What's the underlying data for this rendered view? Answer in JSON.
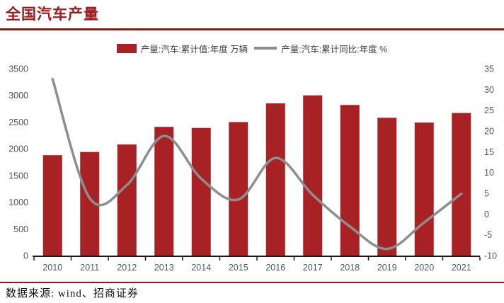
{
  "header": {
    "title": "全国汽车产量"
  },
  "legend": {
    "items": [
      {
        "kind": "bar",
        "label": "产量:汽车:累计值:年度  万辆"
      },
      {
        "kind": "line",
        "label": "产量:汽车:累计同比:年度  %"
      }
    ]
  },
  "footer": {
    "source": "数据来源: wind、招商证券"
  },
  "colors": {
    "bar_red": "#a72125",
    "title_red": "#9a1a1e",
    "rule_red": "#8a1719",
    "line_gray": "#8e8e8e",
    "axis_text": "#4d5866",
    "legend_text": "#404040",
    "axis_line": "#1a1a1a"
  },
  "chart_data": {
    "type": "bar",
    "subtype": "bar+line combo, dual axis",
    "title": "全国汽车产量",
    "categories": [
      "2010",
      "2011",
      "2012",
      "2013",
      "2014",
      "2015",
      "2016",
      "2017",
      "2018",
      "2019",
      "2020",
      "2021"
    ],
    "series": [
      {
        "name": "产量:汽车:累计值:年度 万辆",
        "type": "bar",
        "axis": "left",
        "values": [
          1880,
          1940,
          2080,
          2410,
          2390,
          2500,
          2850,
          3000,
          2820,
          2580,
          2490,
          2670
        ]
      },
      {
        "name": "产量:汽车:累计同比:年度 %",
        "type": "line",
        "axis": "right",
        "smooth": true,
        "values": [
          32.5,
          3.8,
          7.0,
          18.8,
          8.5,
          3.5,
          13.5,
          4.6,
          -3.0,
          -8.4,
          -2.0,
          4.9
        ]
      }
    ],
    "left_axis": {
      "min": 0,
      "max": 3500,
      "step": 500,
      "ticks": [
        "0",
        "500",
        "1000",
        "1500",
        "2000",
        "2500",
        "3000",
        "3500"
      ]
    },
    "right_axis": {
      "min": -10,
      "max": 35,
      "step": 5,
      "ticks": [
        "-10",
        "-5",
        "0",
        "5",
        "10",
        "15",
        "20",
        "25",
        "30",
        "35"
      ]
    },
    "grid": false,
    "legend_position": "top",
    "source_note": "数据来源: wind、招商证券"
  }
}
